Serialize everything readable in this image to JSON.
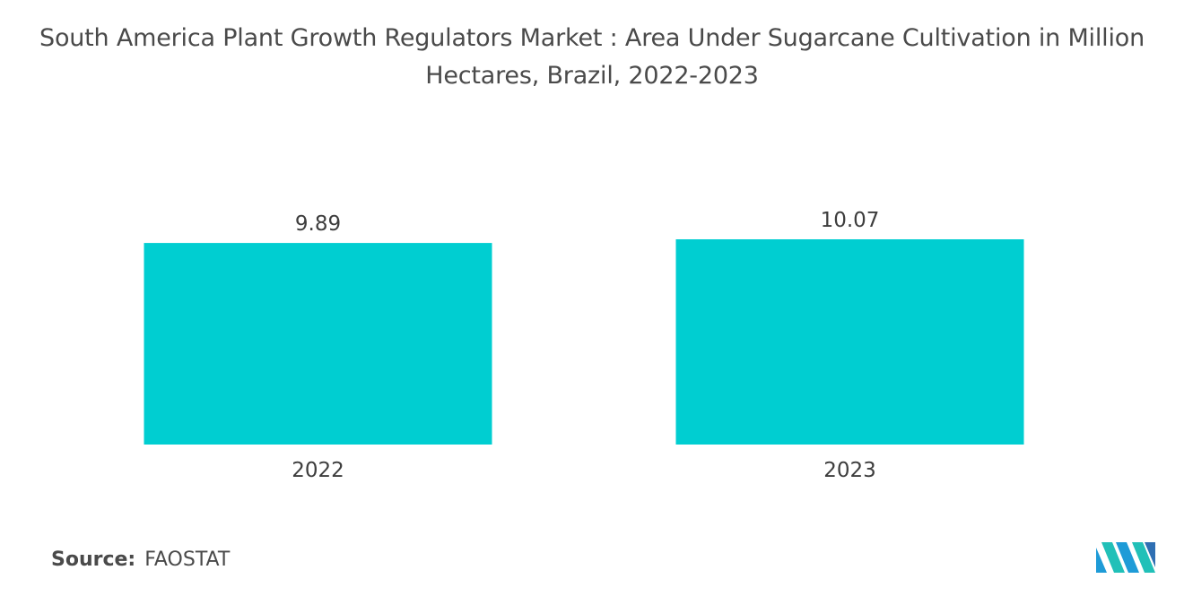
{
  "chart_data": {
    "type": "bar",
    "title_line1": "South America Plant Growth Regulators Market : Area Under Sugarcane Cultivation in Million",
    "title_line2": "Hectares, Brazil, 2022-2023",
    "categories": [
      "2022",
      "2023"
    ],
    "values": [
      9.89,
      10.07
    ],
    "data_labels": [
      "9.89",
      "10.07"
    ],
    "ylim": [
      0,
      10.07
    ],
    "grid": false,
    "legend": "none",
    "bar_color": "#00ced1"
  },
  "source": {
    "label": "Source:",
    "value": "FAOSTAT"
  },
  "logo": {
    "icon": "mordor-intelligence-logo-icon",
    "colors": [
      "#1e9bd7",
      "#21c0b8",
      "#2f6fb3"
    ]
  }
}
